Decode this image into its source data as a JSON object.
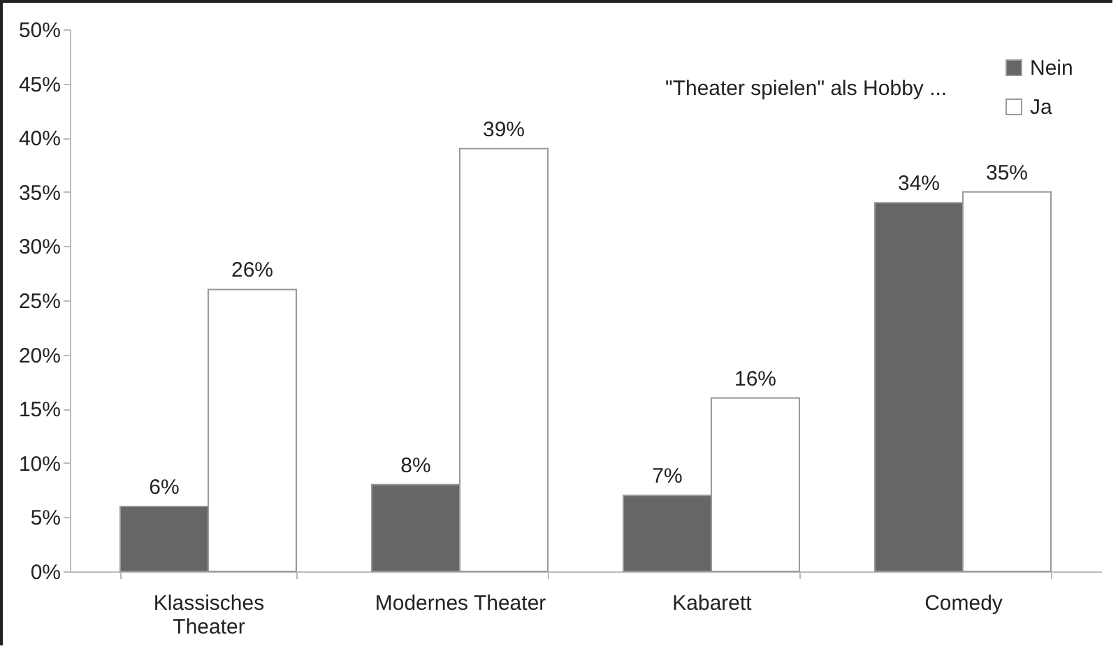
{
  "chart_data": {
    "type": "bar",
    "categories": [
      "Klassisches Theater",
      "Modernes Theater",
      "Kabarett",
      "Comedy"
    ],
    "legend_title": "\"Theater spielen\" als Hobby ...",
    "series": [
      {
        "name": "Nein",
        "color": "#666666",
        "values": [
          6,
          8,
          7,
          34
        ],
        "value_labels": [
          "6%",
          "8%",
          "7%",
          "34%"
        ]
      },
      {
        "name": "Ja",
        "color": "#ffffff",
        "values": [
          26,
          39,
          16,
          35
        ],
        "value_labels": [
          "26%",
          "39%",
          "16%",
          "35%"
        ]
      }
    ],
    "ylim": [
      0,
      50
    ],
    "yticks": [
      {
        "value": 0,
        "label": "0%"
      },
      {
        "value": 5,
        "label": "5%"
      },
      {
        "value": 10,
        "label": "10%"
      },
      {
        "value": 15,
        "label": "15%"
      },
      {
        "value": 20,
        "label": "20%"
      },
      {
        "value": 25,
        "label": "25%"
      },
      {
        "value": 30,
        "label": "30%"
      },
      {
        "value": 35,
        "label": "35%"
      },
      {
        "value": 40,
        "label": "40%"
      },
      {
        "value": 45,
        "label": "45%"
      },
      {
        "value": 50,
        "label": "50%"
      }
    ],
    "grid": false,
    "legend": "top right"
  }
}
